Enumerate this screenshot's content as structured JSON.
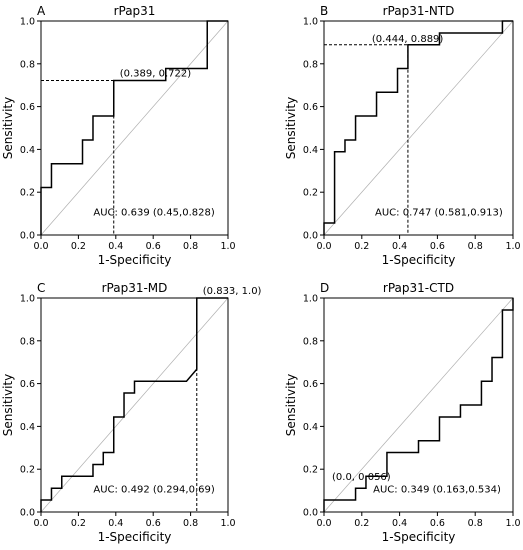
{
  "chart_data": [
    {
      "type": "line",
      "panel": "A",
      "title": "rPap31",
      "xlabel": "1-Specificity",
      "ylabel": "Sensitivity",
      "xlim": [
        0,
        1
      ],
      "ylim": [
        0,
        1
      ],
      "xticks": [
        "0.0",
        "0.2",
        "0.4",
        "0.6",
        "0.8",
        "1.0"
      ],
      "yticks": [
        "0.0",
        "0.2",
        "0.4",
        "0.6",
        "0.8",
        "1.0"
      ],
      "grid": false,
      "legend": false,
      "roc": {
        "x": [
          0,
          0,
          0.056,
          0.056,
          0.222,
          0.222,
          0.278,
          0.278,
          0.389,
          0.389,
          0.667,
          0.667,
          0.889,
          0.889,
          1.0
        ],
        "y": [
          0,
          0.222,
          0.222,
          0.333,
          0.333,
          0.444,
          0.444,
          0.556,
          0.556,
          0.722,
          0.722,
          0.778,
          0.778,
          1.0,
          1.0
        ]
      },
      "cutoff": {
        "x": 0.389,
        "y": 0.722,
        "label": "(0.389, 0.722)"
      },
      "auc_label": "AUC: 0.639 (0.45,0.828)"
    },
    {
      "type": "line",
      "panel": "B",
      "title": "rPap31-NTD",
      "xlabel": "1-Specificity",
      "ylabel": "Sensitivity",
      "xlim": [
        0,
        1
      ],
      "ylim": [
        0,
        1
      ],
      "xticks": [
        "0.0",
        "0.2",
        "0.4",
        "0.6",
        "0.8",
        "1.0"
      ],
      "yticks": [
        "0.0",
        "0.2",
        "0.4",
        "0.6",
        "0.8",
        "1.0"
      ],
      "grid": false,
      "legend": false,
      "roc": {
        "x": [
          0,
          0,
          0.056,
          0.056,
          0.111,
          0.111,
          0.167,
          0.167,
          0.278,
          0.278,
          0.389,
          0.389,
          0.444,
          0.444,
          0.611,
          0.611,
          0.944,
          0.944,
          1.0
        ],
        "y": [
          0,
          0.056,
          0.056,
          0.389,
          0.389,
          0.444,
          0.444,
          0.556,
          0.556,
          0.667,
          0.667,
          0.778,
          0.778,
          0.889,
          0.889,
          0.944,
          0.944,
          1.0,
          1.0
        ]
      },
      "cutoff": {
        "x": 0.444,
        "y": 0.889,
        "label": "(0.444, 0.889)"
      },
      "auc_label": "AUC: 0.747 (0.581,0.913)"
    },
    {
      "type": "line",
      "panel": "C",
      "title": "rPap31-MD",
      "xlabel": "1-Specificity",
      "ylabel": "Sensitivity",
      "xlim": [
        0,
        1
      ],
      "ylim": [
        0,
        1
      ],
      "xticks": [
        "0.0",
        "0.2",
        "0.4",
        "0.6",
        "0.8",
        "1.0"
      ],
      "yticks": [
        "0.0",
        "0.2",
        "0.4",
        "0.6",
        "0.8",
        "1.0"
      ],
      "grid": false,
      "legend": false,
      "roc": {
        "x": [
          0,
          0,
          0.056,
          0.056,
          0.111,
          0.111,
          0.278,
          0.278,
          0.333,
          0.333,
          0.389,
          0.389,
          0.444,
          0.444,
          0.5,
          0.5,
          0.778,
          0.833,
          0.833,
          1.0
        ],
        "y": [
          0,
          0.056,
          0.056,
          0.111,
          0.111,
          0.167,
          0.167,
          0.222,
          0.222,
          0.278,
          0.278,
          0.444,
          0.444,
          0.556,
          0.556,
          0.611,
          0.611,
          0.667,
          1.0,
          1.0
        ]
      },
      "cutoff": {
        "x": 0.833,
        "y": 1.0,
        "label": "(0.833, 1.0)"
      },
      "auc_label": "AUC: 0.492 (0.294,0.69)"
    },
    {
      "type": "line",
      "panel": "D",
      "title": "rPap31-CTD",
      "xlabel": "1-Specificity",
      "ylabel": "Sensitivity",
      "xlim": [
        0,
        1
      ],
      "ylim": [
        0,
        1
      ],
      "xticks": [
        "0.0",
        "0.2",
        "0.4",
        "0.6",
        "0.8",
        "1.0"
      ],
      "yticks": [
        "0.0",
        "0.2",
        "0.4",
        "0.6",
        "0.8",
        "1.0"
      ],
      "grid": false,
      "legend": false,
      "roc": {
        "x": [
          0,
          0,
          0.167,
          0.167,
          0.222,
          0.222,
          0.333,
          0.333,
          0.5,
          0.5,
          0.611,
          0.611,
          0.722,
          0.722,
          0.833,
          0.833,
          0.889,
          0.889,
          0.944,
          0.944,
          1.0,
          1.0
        ],
        "y": [
          0,
          0.056,
          0.056,
          0.111,
          0.111,
          0.167,
          0.167,
          0.278,
          0.278,
          0.333,
          0.333,
          0.444,
          0.444,
          0.5,
          0.5,
          0.611,
          0.611,
          0.722,
          0.722,
          0.944,
          0.944,
          1.0
        ]
      },
      "cutoff": {
        "x": 0.0,
        "y": 0.056,
        "label": "(0.0, 0.056)"
      },
      "auc_label": "AUC: 0.349 (0.163,0.534)"
    }
  ]
}
